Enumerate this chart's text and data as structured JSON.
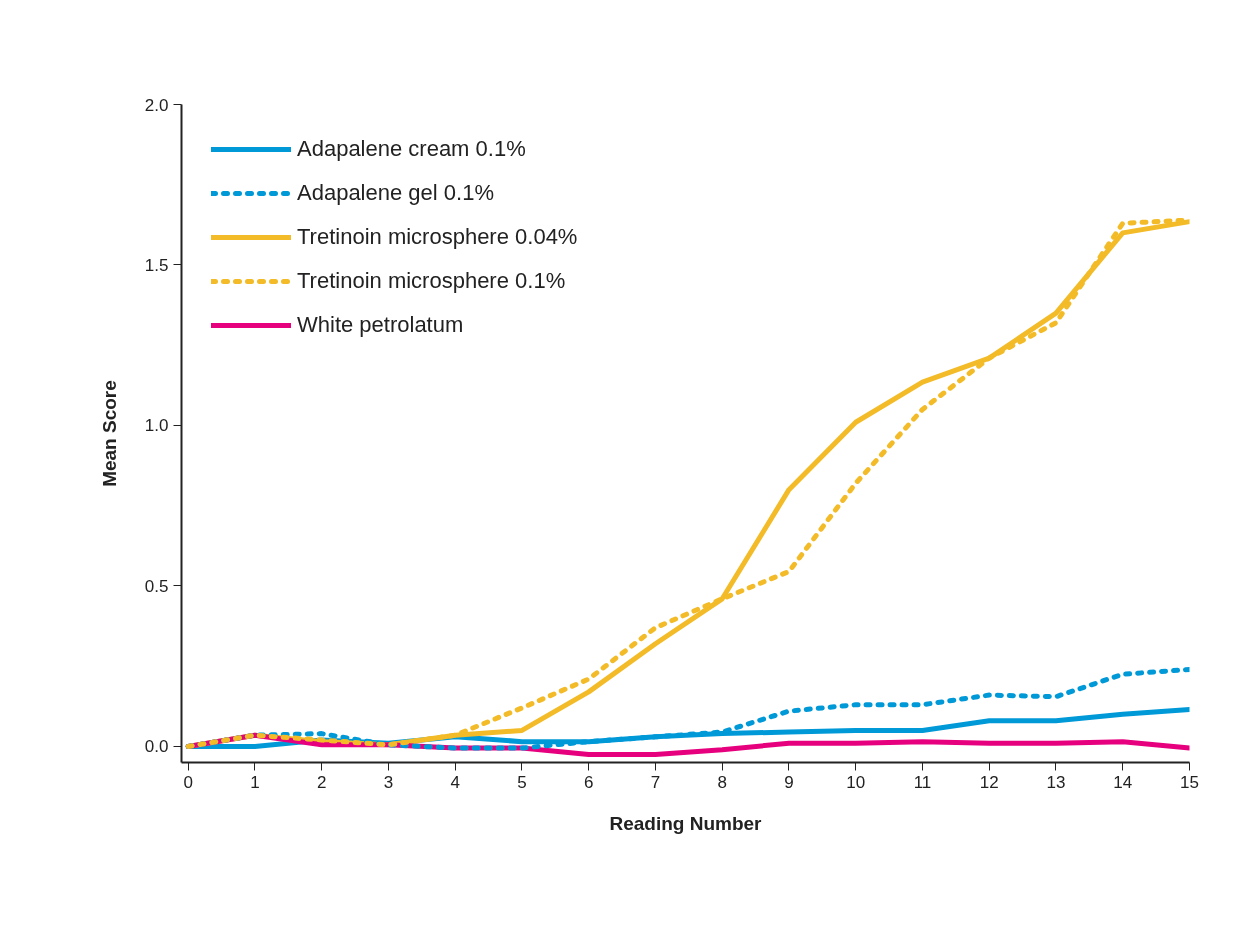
{
  "chart_data": {
    "type": "line",
    "xlabel": "Reading Number",
    "ylabel": "Mean Score",
    "x": [
      0,
      1,
      2,
      3,
      4,
      5,
      6,
      7,
      8,
      9,
      10,
      11,
      12,
      13,
      14,
      15
    ],
    "series": [
      {
        "name": "Adapalene cream 0.1%",
        "color": "#0099d8",
        "line_style": "solid",
        "values": [
          0,
          0.0,
          0.02,
          0.01,
          0.03,
          0.015,
          0.015,
          0.03,
          0.04,
          0.045,
          0.05,
          0.05,
          0.08,
          0.08,
          0.1,
          0.115
        ]
      },
      {
        "name": "Adapalene gel 0.1%",
        "color": "#0099d8",
        "line_style": "dotted",
        "values": [
          0,
          0.035,
          0.04,
          0.005,
          -0.005,
          -0.005,
          0.015,
          0.03,
          0.045,
          0.11,
          0.13,
          0.13,
          0.16,
          0.155,
          0.225,
          0.24
        ]
      },
      {
        "name": "Tretinoin microsphere 0.04%",
        "color": "#f2bb27",
        "line_style": "solid",
        "values": [
          0,
          0.035,
          0.015,
          0.005,
          0.035,
          0.05,
          0.17,
          0.32,
          0.46,
          0.8,
          1.01,
          1.135,
          1.21,
          1.35,
          1.6,
          1.635
        ]
      },
      {
        "name": "Tretinoin microsphere 0.1%",
        "color": "#f2bb27",
        "line_style": "dotted",
        "values": [
          0,
          0.035,
          0.02,
          0.005,
          0.035,
          0.12,
          0.21,
          0.37,
          0.46,
          0.545,
          0.82,
          1.05,
          1.21,
          1.32,
          1.63,
          1.64
        ]
      },
      {
        "name": "White petrolatum",
        "color": "#e6007e",
        "line_style": "solid",
        "values": [
          0,
          0.035,
          0.005,
          0.005,
          -0.005,
          -0.005,
          -0.025,
          -0.025,
          -0.01,
          0.01,
          0.01,
          0.015,
          0.01,
          0.01,
          0.015,
          -0.005
        ]
      }
    ],
    "xlim": [
      -0.1,
      15
    ],
    "ylim": [
      -0.05,
      2.0
    ],
    "xticks": [
      0,
      1,
      2,
      3,
      4,
      5,
      6,
      7,
      8,
      9,
      10,
      11,
      12,
      13,
      14,
      15
    ],
    "yticks": [
      {
        "value": 0,
        "label": "0.0"
      },
      {
        "value": 0.5,
        "label": "0.5"
      },
      {
        "value": 1,
        "label": "1.0"
      },
      {
        "value": 1.5,
        "label": "1.5"
      },
      {
        "value": 2,
        "label": "2.0"
      }
    ],
    "grid": false,
    "legend": "top left",
    "marker": "none"
  }
}
